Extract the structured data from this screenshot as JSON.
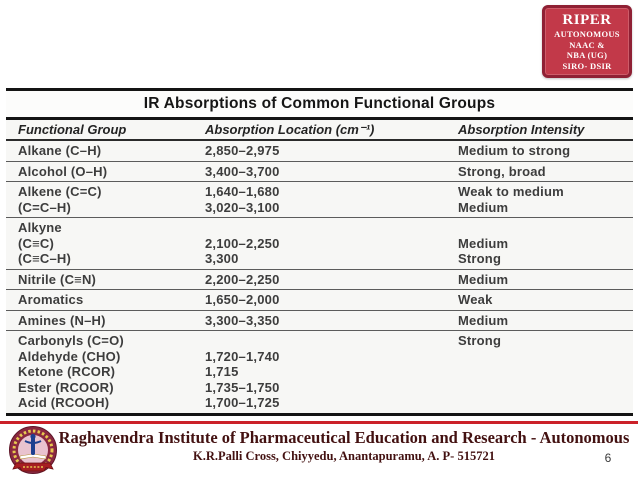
{
  "slide": {
    "badge": {
      "title": "RIPER",
      "lines": [
        "AUTONOMOUS",
        "NAAC &",
        "NBA (UG)",
        "SIRO- DSIR"
      ]
    },
    "table": {
      "title": "IR Absorptions of Common Functional Groups",
      "columns": [
        "Functional Group",
        "Absorption Location (cm⁻¹)",
        "Absorption Intensity"
      ],
      "rows": [
        {
          "group": [
            "Alkane (C–H)"
          ],
          "location": [
            "2,850–2,975"
          ],
          "intensity": [
            "Medium to strong"
          ]
        },
        {
          "group": [
            "Alcohol (O–H)"
          ],
          "location": [
            "3,400–3,700"
          ],
          "intensity": [
            "Strong, broad"
          ]
        },
        {
          "group": [
            "Alkene (C=C)",
            "(C=C–H)"
          ],
          "location": [
            "1,640–1,680",
            "3,020–3,100"
          ],
          "intensity": [
            "Weak to medium",
            "Medium"
          ]
        },
        {
          "group": [
            "Alkyne",
            "(C≡C)",
            "(C≡C–H)"
          ],
          "location": [
            "",
            "2,100–2,250",
            "3,300"
          ],
          "intensity": [
            "",
            "Medium",
            "Strong"
          ]
        },
        {
          "group": [
            "Nitrile (C≡N)"
          ],
          "location": [
            "2,200–2,250"
          ],
          "intensity": [
            "Medium"
          ]
        },
        {
          "group": [
            "Aromatics"
          ],
          "location": [
            "1,650–2,000"
          ],
          "intensity": [
            "Weak"
          ]
        },
        {
          "group": [
            "Amines (N–H)"
          ],
          "location": [
            "3,300–3,350"
          ],
          "intensity": [
            "Medium"
          ]
        },
        {
          "group": [
            "Carbonyls (C=O)",
            "Aldehyde (CHO)",
            "Ketone (RCOR)",
            "Ester (RCOOR)",
            "Acid (RCOOH)"
          ],
          "location": [
            "",
            "1,720–1,740",
            "1,715",
            "1,735–1,750",
            "1,700–1,725"
          ],
          "intensity": [
            "Strong",
            "",
            "",
            "",
            ""
          ]
        }
      ]
    },
    "footer": {
      "institution": "Raghavendra Institute of Pharmaceutical Education and Research - Autonomous",
      "address": "K.R.Palli Cross, Chiyyedu, Anantapuramu, A. P- 515721",
      "page_number": "6"
    },
    "colors": {
      "badge_fill": "#c23949",
      "badge_border": "#8f2034",
      "footer_text": "#431111",
      "footer_rule": "#cb2129",
      "table_rule": "#141414"
    }
  }
}
